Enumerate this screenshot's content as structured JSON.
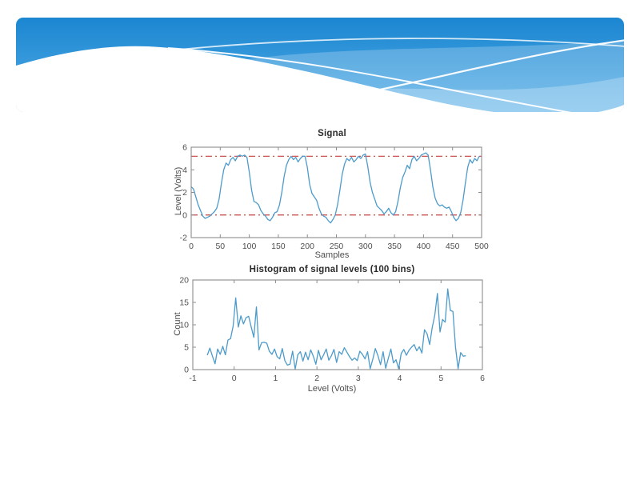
{
  "header_banner": {
    "colors": {
      "gradient_top": "#1b86d1",
      "gradient_bottom": "#55aee7",
      "wave_band": "#ffffff",
      "thin_line": "#ffffff",
      "white_wave": "#ffffff"
    }
  },
  "figure": {
    "background": "#ffffff",
    "axis_color": "#8c8c8c",
    "tick_label_color": "#4f4f4f",
    "title_color": "#2b2b2b",
    "label_color": "#4f4f4f"
  },
  "chart_data": [
    {
      "type": "line",
      "title": "Signal",
      "xlabel": "Samples",
      "ylabel": "Level (Volts)",
      "xlim": [
        0,
        500
      ],
      "ylim": [
        -2,
        6
      ],
      "xticks": [
        0,
        50,
        100,
        150,
        200,
        250,
        300,
        350,
        400,
        450,
        500
      ],
      "yticks": [
        -2,
        0,
        2,
        4,
        6
      ],
      "grid": false,
      "legend": null,
      "line_color": "#4d9bcb",
      "ref_lines": {
        "values": [
          5.2,
          0
        ],
        "color": "#c8413e",
        "style": "dash-dot"
      },
      "x_start": 0,
      "x_step": 4,
      "values": [
        2.5,
        2.3,
        1.6,
        0.9,
        0.4,
        -0.1,
        -0.3,
        -0.2,
        -0.1,
        0.1,
        0.3,
        0.6,
        1.4,
        2.8,
        4.0,
        4.6,
        4.4,
        4.9,
        5.1,
        4.8,
        5.2,
        5.3,
        5.2,
        5.3,
        5.1,
        3.8,
        2.2,
        1.2,
        1.1,
        0.9,
        0.4,
        0.1,
        -0.1,
        -0.4,
        -0.5,
        -0.2,
        0.2,
        0.3,
        0.9,
        2.0,
        3.4,
        4.4,
        4.9,
        5.2,
        4.9,
        5.1,
        4.7,
        5.0,
        5.2,
        5.2,
        4.2,
        2.7,
        1.9,
        1.6,
        1.3,
        0.6,
        0.1,
        -0.1,
        -0.2,
        -0.5,
        -0.7,
        -0.4,
        0.0,
        0.9,
        2.2,
        3.6,
        4.5,
        5.0,
        4.8,
        5.1,
        4.7,
        4.9,
        5.2,
        5.0,
        5.3,
        5.4,
        4.3,
        2.9,
        2.0,
        1.4,
        0.8,
        0.6,
        0.4,
        0.1,
        0.3,
        0.6,
        0.2,
        0.0,
        0.3,
        1.2,
        2.4,
        3.3,
        3.8,
        4.4,
        4.1,
        4.9,
        5.2,
        4.8,
        5.0,
        5.3,
        5.4,
        5.5,
        5.3,
        4.0,
        2.5,
        1.5,
        1.0,
        0.8,
        0.9,
        0.7,
        0.6,
        0.7,
        0.3,
        -0.2,
        -0.5,
        -0.3,
        0.2,
        1.3,
        2.8,
        4.2,
        4.9,
        4.6,
        5.0,
        4.8,
        5.2
      ]
    },
    {
      "type": "line",
      "title": "Histogram of signal levels (100 bins)",
      "xlabel": "Level (Volts)",
      "ylabel": "Count",
      "xlim": [
        -1,
        6
      ],
      "ylim": [
        0,
        20
      ],
      "xticks": [
        -1,
        0,
        1,
        2,
        3,
        4,
        5,
        6
      ],
      "yticks": [
        0,
        5,
        10,
        15,
        20
      ],
      "grid": false,
      "legend": null,
      "line_color": "#4d9bcb",
      "ref_lines": null,
      "x_start": -0.65,
      "x_step": 0.0625,
      "values": [
        3.2,
        4.8,
        3.0,
        1.3,
        4.6,
        3.4,
        5.2,
        3.3,
        6.6,
        6.9,
        9.7,
        16.0,
        9.5,
        12.0,
        10.2,
        11.6,
        11.9,
        9.5,
        7.2,
        14.0,
        4.4,
        6.0,
        6.1,
        5.9,
        4.1,
        3.4,
        4.6,
        2.9,
        2.4,
        4.7,
        2.0,
        1.0,
        1.2,
        4.1,
        0.1,
        3.3,
        4.0,
        1.9,
        3.9,
        2.2,
        4.4,
        3.0,
        1.2,
        4.3,
        2.2,
        3.3,
        4.6,
        2.1,
        3.1,
        4.5,
        1.6,
        4.0,
        3.4,
        4.9,
        3.9,
        2.9,
        2.1,
        2.6,
        2.0,
        4.1,
        3.4,
        2.4,
        4.0,
        0.2,
        2.3,
        4.7,
        3.1,
        1.1,
        4.0,
        0.3,
        2.5,
        4.6,
        1.5,
        2.2,
        0.2,
        3.6,
        4.5,
        3.2,
        4.3,
        5.0,
        5.6,
        4.2,
        5.1,
        3.7,
        8.9,
        8.0,
        5.6,
        9.4,
        12.2,
        17.0,
        8.4,
        11.2,
        10.6,
        18.0,
        13.2,
        13.0,
        5.0,
        0.2,
        3.8,
        3.0,
        3.1
      ]
    }
  ]
}
